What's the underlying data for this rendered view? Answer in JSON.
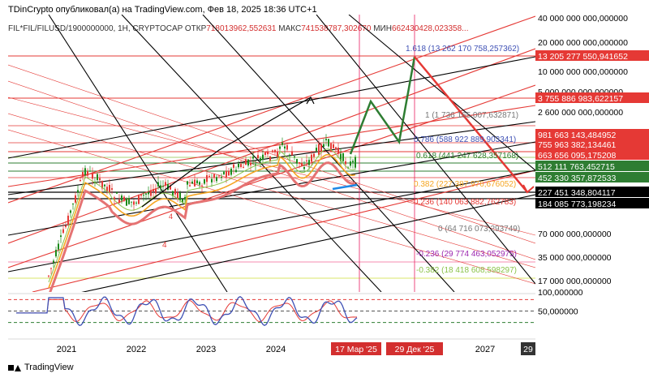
{
  "header": {
    "publish_line": "TDinCrypto опубликовал(а) на TradingView.com, Фев 18, 2025 18:36 UTC+1",
    "symbol": "FIL*FIL/FILUSD/1900000000, 1H, CRYPTOCAP",
    "ohlc_open_label": "ОТКР",
    "ohlc_open": "718013962,552631",
    "ohlc_high_label": "МАКС",
    "ohlc_high": "741538787,302670",
    "ohlc_low_label": "МИН",
    "ohlc_low": "662430428,023358..."
  },
  "footer": {
    "brand": "TradingView"
  },
  "colors": {
    "red": "#e53935",
    "green": "#1b8a1b",
    "dark_green": "#2e7d32",
    "black": "#000000",
    "orange": "#f5a623",
    "blue": "#3f51b5",
    "pink": "#e91e63"
  },
  "chart_data": {
    "type": "line",
    "scale": "log",
    "x_axis": {
      "ticks": [
        "2021",
        "2022",
        "2023",
        "2024",
        "2027"
      ],
      "highlight_labels": [
        "17 Мар '25",
        "29 Дек '25"
      ],
      "cut_label": "29"
    },
    "y_axis": {
      "ticks": [
        "40 000 000 000,000000",
        "20 000 000 000,000000",
        "10 000 000 000,000000",
        "5 000 000 000,000000",
        "2 600 000 000,000000",
        "70 000 000,000000",
        "35 000 000,000000",
        "17 000 000,000000"
      ],
      "price_labels": [
        {
          "value": "13 205 277 550,941652",
          "color": "#e53935"
        },
        {
          "value": "3 755 886 983,622157",
          "color": "#e53935"
        },
        {
          "value": "981 663 143,484952",
          "color": "#e53935"
        },
        {
          "value": "755 963 382,134461",
          "color": "#e53935"
        },
        {
          "value": "663 656 095,175208",
          "color": "#e53935"
        },
        {
          "value": "512 111 763,452715",
          "color": "#2e7d32"
        },
        {
          "value": "452 330 357,872533",
          "color": "#2e7d32"
        },
        {
          "value": "227 451 348,804117",
          "color": "#000000"
        },
        {
          "value": "184 085 773,198234",
          "color": "#000000"
        }
      ]
    },
    "fib_levels": [
      {
        "label": "1.618 (13 262 170 758,257362)",
        "color": "#3f51b5"
      },
      {
        "label": "1 (1 736 165 007,632871)",
        "color": "#777777"
      },
      {
        "label": "0.786 (588 922 889,903341)",
        "color": "#3f51b5"
      },
      {
        "label": "0.618 (441 247 628,357168)",
        "color": "#2e7d32"
      },
      {
        "label": "0.382 (227 387 976,676052)",
        "color": "#f5a623"
      },
      {
        "label": "0.236 (140 063 882,762783)",
        "color": "#e53935"
      },
      {
        "label": "0 (64 716 073,293749)",
        "color": "#777777"
      },
      {
        "label": "-0.236 (29 774 463,052975)",
        "color": "#9c27b0"
      },
      {
        "label": "-0.382 (18 418 608,598297)",
        "color": "#8bc34a"
      }
    ],
    "oscillator": {
      "ticks": [
        "100,000000",
        "50,000000"
      ],
      "levels": [
        80,
        50,
        20
      ]
    },
    "annotations": [
      "4",
      "4"
    ]
  }
}
